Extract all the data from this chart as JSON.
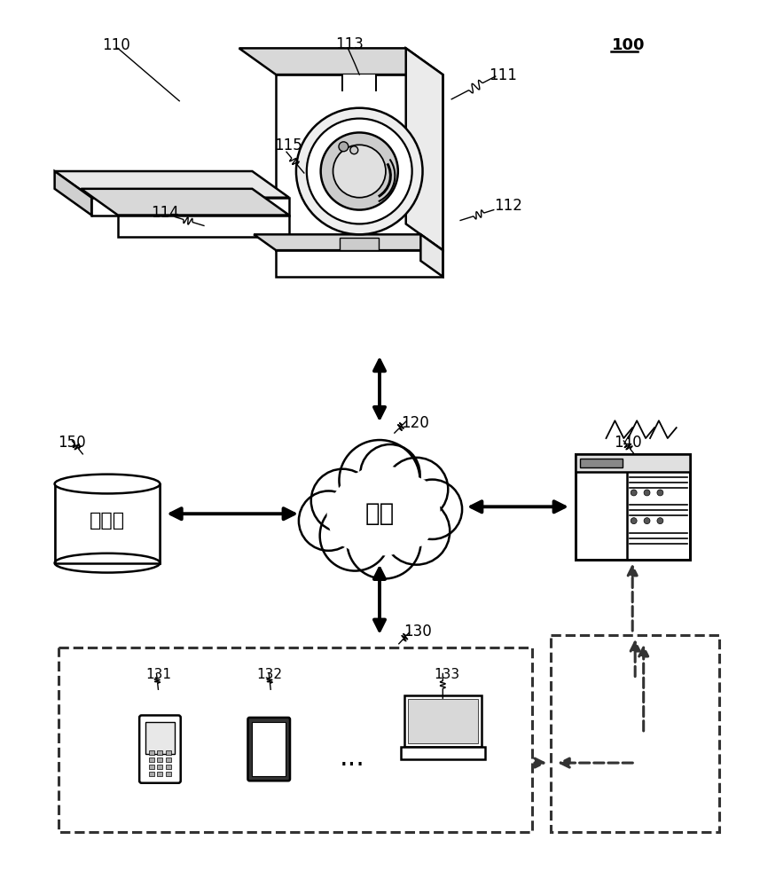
{
  "bg_color": "#ffffff",
  "label_100": "100",
  "label_110": "110",
  "label_111": "111",
  "label_112": "112",
  "label_113": "113",
  "label_114": "114",
  "label_115": "115",
  "label_120": "120",
  "label_130": "130",
  "label_131": "131",
  "label_132": "132",
  "label_133": "133",
  "label_140": "140",
  "label_150": "150",
  "network_text": "网络",
  "storage_text": "存储器",
  "font_color": "#000000",
  "line_color": "#000000"
}
